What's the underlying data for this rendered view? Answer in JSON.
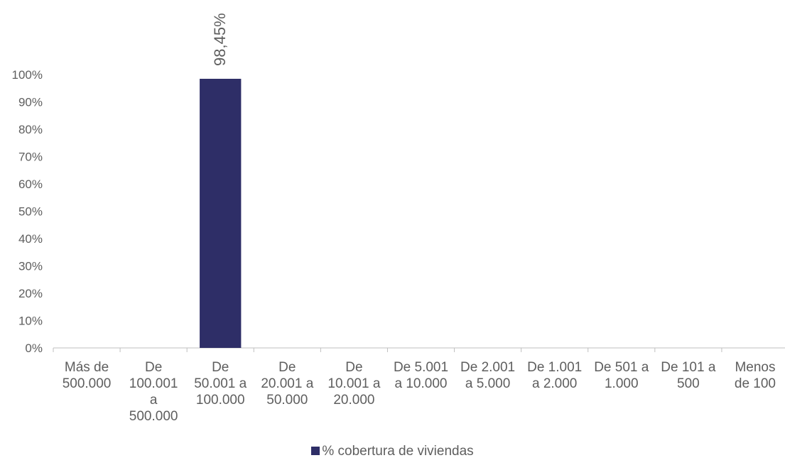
{
  "chart_data": {
    "type": "bar",
    "categories": [
      [
        "Más de",
        "500.000"
      ],
      [
        "De",
        "100.001",
        "a",
        "500.000"
      ],
      [
        "De",
        "50.001 a",
        "100.000"
      ],
      [
        "De",
        "20.001 a",
        "50.000"
      ],
      [
        "De",
        "10.001 a",
        "20.000"
      ],
      [
        "De 5.001",
        "a 10.000"
      ],
      [
        "De 2.001",
        "a 5.000"
      ],
      [
        "De 1.001",
        "a 2.000"
      ],
      [
        "De 501 a",
        "1.000"
      ],
      [
        "De 101 a",
        "500"
      ],
      [
        "Menos",
        "de 100"
      ]
    ],
    "series": [
      {
        "name": "% cobertura de viviendas",
        "values": [
          null,
          null,
          98.45,
          null,
          null,
          null,
          null,
          null,
          null,
          null,
          null
        ],
        "data_labels": [
          null,
          null,
          "98,45%",
          null,
          null,
          null,
          null,
          null,
          null,
          null,
          null
        ],
        "color": "#2e2e67"
      }
    ],
    "ylim": [
      0,
      100
    ],
    "y_ticks": [
      "0%",
      "10%",
      "20%",
      "30%",
      "40%",
      "50%",
      "60%",
      "70%",
      "80%",
      "90%",
      "100%"
    ],
    "grid": false,
    "legend_position": "bottom"
  },
  "colors": {
    "bar": "#2e2e67",
    "axis": "#bfbfbf",
    "text": "#5e5e5e"
  }
}
